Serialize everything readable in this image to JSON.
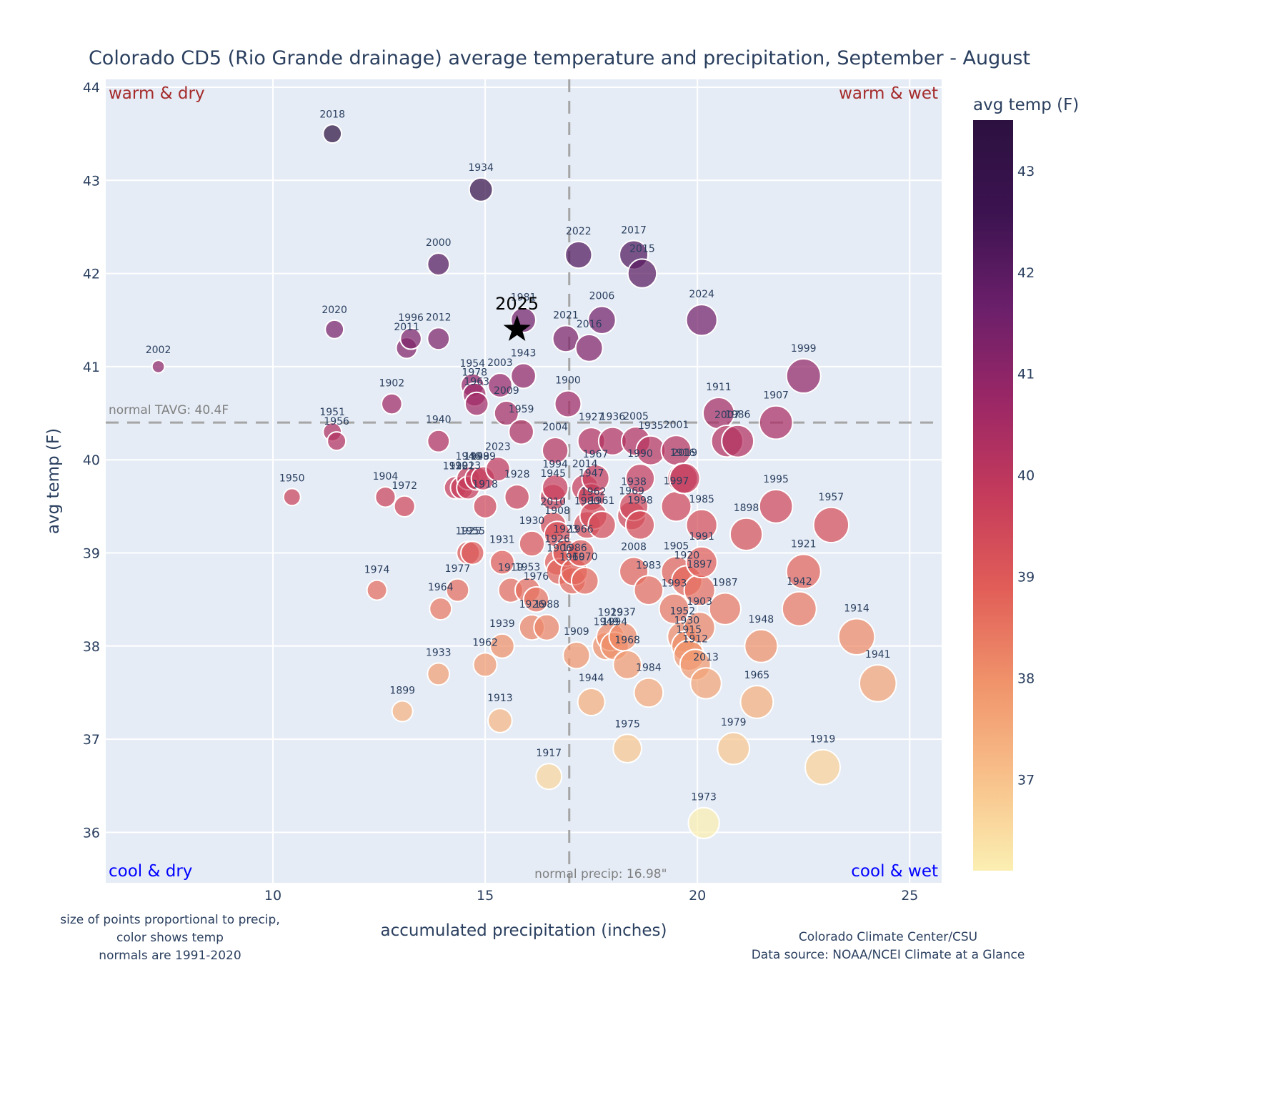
{
  "chart_data": {
    "type": "scatter",
    "title": "Colorado CD5 (Rio Grande drainage) average temperature and precipitation, September - August",
    "xlabel": "accumulated precipitation (inches)",
    "ylabel": "avg temp (F)",
    "xlim": [
      6,
      25.8
    ],
    "ylim": [
      35.5,
      44.1
    ],
    "xticks": [
      10,
      15,
      20,
      25
    ],
    "yticks": [
      36,
      37,
      38,
      39,
      40,
      41,
      42,
      43,
      44
    ],
    "grid": true,
    "colorbar": {
      "title": "avg temp (F)",
      "range": [
        36.1,
        43.5
      ],
      "ticks": [
        37,
        38,
        39,
        40,
        41,
        42,
        43
      ],
      "colorscale": "magma-reversed",
      "stops": [
        "#fbefb1",
        "#f8c08a",
        "#f0936b",
        "#e15e58",
        "#c53b5b",
        "#9b2766",
        "#6b1f6a",
        "#3c1350",
        "#2c1140"
      ]
    },
    "normals": {
      "temp": 40.4,
      "temp_label": "normal TAVG: 40.4F",
      "precip": 16.98,
      "precip_label": "normal precip: 16.98\""
    },
    "quadrant_labels": {
      "top_left": "warm & dry",
      "top_right": "warm & wet",
      "bottom_left": "cool & dry",
      "bottom_right": "cool & wet"
    },
    "highlight": {
      "label": "2025",
      "precip": 15.75,
      "temp": 41.4,
      "marker": "star"
    },
    "size_encoding": "precip",
    "color_encoding": "temp",
    "points": [
      {
        "year": "2018",
        "precip": 11.4,
        "temp": 43.5
      },
      {
        "year": "1934",
        "precip": 14.9,
        "temp": 42.9
      },
      {
        "year": "2000",
        "precip": 13.9,
        "temp": 42.1
      },
      {
        "year": "2022",
        "precip": 17.2,
        "temp": 42.2
      },
      {
        "year": "2017",
        "precip": 18.5,
        "temp": 42.2
      },
      {
        "year": "2015",
        "precip": 18.7,
        "temp": 42.0
      },
      {
        "year": "2006",
        "precip": 17.75,
        "temp": 41.5
      },
      {
        "year": "2024",
        "precip": 20.1,
        "temp": 41.5
      },
      {
        "year": "2021",
        "precip": 16.9,
        "temp": 41.3
      },
      {
        "year": "2016",
        "precip": 17.45,
        "temp": 41.2
      },
      {
        "year": "1981",
        "precip": 15.9,
        "temp": 41.5
      },
      {
        "year": "2020",
        "precip": 11.45,
        "temp": 41.4
      },
      {
        "year": "1996",
        "precip": 13.25,
        "temp": 41.3
      },
      {
        "year": "2011",
        "precip": 13.15,
        "temp": 41.2
      },
      {
        "year": "2012",
        "precip": 13.9,
        "temp": 41.3
      },
      {
        "year": "2002",
        "precip": 7.3,
        "temp": 41.0
      },
      {
        "year": "1999",
        "precip": 22.5,
        "temp": 40.9
      },
      {
        "year": "1943",
        "precip": 15.9,
        "temp": 40.9
      },
      {
        "year": "2003",
        "precip": 15.35,
        "temp": 40.8
      },
      {
        "year": "1954",
        "precip": 14.7,
        "temp": 40.8
      },
      {
        "year": "1978",
        "precip": 14.75,
        "temp": 40.7
      },
      {
        "year": "1963",
        "precip": 14.8,
        "temp": 40.6
      },
      {
        "year": "2009",
        "precip": 15.5,
        "temp": 40.5
      },
      {
        "year": "1902",
        "precip": 12.8,
        "temp": 40.6
      },
      {
        "year": "1900",
        "precip": 16.95,
        "temp": 40.6
      },
      {
        "year": "1959",
        "precip": 15.85,
        "temp": 40.3
      },
      {
        "year": "1911",
        "precip": 20.5,
        "temp": 40.5
      },
      {
        "year": "2007",
        "precip": 20.7,
        "temp": 40.2
      },
      {
        "year": "1986",
        "precip": 20.95,
        "temp": 40.2
      },
      {
        "year": "1907",
        "precip": 21.85,
        "temp": 40.4
      },
      {
        "year": "1951",
        "precip": 11.4,
        "temp": 40.3
      },
      {
        "year": "1956",
        "precip": 11.5,
        "temp": 40.2
      },
      {
        "year": "1940",
        "precip": 13.9,
        "temp": 40.2
      },
      {
        "year": "2004",
        "precip": 16.65,
        "temp": 40.1
      },
      {
        "year": "1927",
        "precip": 17.5,
        "temp": 40.2
      },
      {
        "year": "1936",
        "precip": 18.0,
        "temp": 40.2
      },
      {
        "year": "2005",
        "precip": 18.55,
        "temp": 40.2
      },
      {
        "year": "1935",
        "precip": 18.9,
        "temp": 40.1
      },
      {
        "year": "2001",
        "precip": 19.5,
        "temp": 40.1
      },
      {
        "year": "2019",
        "precip": 19.7,
        "temp": 39.8
      },
      {
        "year": "1990",
        "precip": 18.65,
        "temp": 39.8
      },
      {
        "year": "2023",
        "precip": 15.3,
        "temp": 39.9
      },
      {
        "year": "1946",
        "precip": 14.6,
        "temp": 39.8
      },
      {
        "year": "1949",
        "precip": 14.8,
        "temp": 39.8
      },
      {
        "year": "1989",
        "precip": 14.95,
        "temp": 39.8
      },
      {
        "year": "1920",
        "precip": 14.3,
        "temp": 39.7
      },
      {
        "year": "1922",
        "precip": 14.45,
        "temp": 39.7
      },
      {
        "year": "1913",
        "precip": 14.6,
        "temp": 39.7
      },
      {
        "year": "1918",
        "precip": 15.0,
        "temp": 39.5
      },
      {
        "year": "1928",
        "precip": 15.75,
        "temp": 39.6
      },
      {
        "year": "1967",
        "precip": 17.6,
        "temp": 39.8
      },
      {
        "year": "1994",
        "precip": 16.65,
        "temp": 39.7
      },
      {
        "year": "1945",
        "precip": 16.6,
        "temp": 39.6
      },
      {
        "year": "2014",
        "precip": 17.35,
        "temp": 39.7
      },
      {
        "year": "1947",
        "precip": 17.5,
        "temp": 39.6
      },
      {
        "year": "1938",
        "precip": 18.5,
        "temp": 39.5
      },
      {
        "year": "1916",
        "precip": 19.65,
        "temp": 39.8
      },
      {
        "year": "1950",
        "precip": 10.45,
        "temp": 39.6
      },
      {
        "year": "1904",
        "precip": 12.65,
        "temp": 39.6
      },
      {
        "year": "1972",
        "precip": 13.1,
        "temp": 39.5
      },
      {
        "year": "1962",
        "precip": 17.55,
        "temp": 39.4
      },
      {
        "year": "1961",
        "precip": 17.75,
        "temp": 39.3
      },
      {
        "year": "1969",
        "precip": 18.45,
        "temp": 39.4
      },
      {
        "year": "1997",
        "precip": 19.5,
        "temp": 39.5
      },
      {
        "year": "2010",
        "precip": 16.6,
        "temp": 39.3
      },
      {
        "year": "1980",
        "precip": 17.4,
        "temp": 39.3
      },
      {
        "year": "1898",
        "precip": 21.15,
        "temp": 39.2
      },
      {
        "year": "1995",
        "precip": 21.85,
        "temp": 39.5
      },
      {
        "year": "1957",
        "precip": 23.15,
        "temp": 39.3
      },
      {
        "year": "1930",
        "precip": 16.1,
        "temp": 39.1
      },
      {
        "year": "1908",
        "precip": 16.7,
        "temp": 39.2
      },
      {
        "year": "1985",
        "precip": 20.1,
        "temp": 39.3
      },
      {
        "year": "1998",
        "precip": 18.65,
        "temp": 39.3
      },
      {
        "year": "1925",
        "precip": 14.6,
        "temp": 39.0
      },
      {
        "year": "1955",
        "precip": 14.7,
        "temp": 39.0
      },
      {
        "year": "1931",
        "precip": 15.4,
        "temp": 38.9
      },
      {
        "year": "1926",
        "precip": 16.7,
        "temp": 38.9
      },
      {
        "year": "1923",
        "precip": 16.9,
        "temp": 39.0
      },
      {
        "year": "1966",
        "precip": 17.25,
        "temp": 39.0
      },
      {
        "year": "1906",
        "precip": 16.75,
        "temp": 38.8
      },
      {
        "year": "1986b",
        "precip": 17.1,
        "temp": 38.8
      },
      {
        "year": "1960",
        "precip": 17.05,
        "temp": 38.7
      },
      {
        "year": "1970",
        "precip": 17.35,
        "temp": 38.7
      },
      {
        "year": "2008",
        "precip": 18.5,
        "temp": 38.8
      },
      {
        "year": "1905",
        "precip": 19.5,
        "temp": 38.8
      },
      {
        "year": "1991",
        "precip": 20.1,
        "temp": 38.9
      },
      {
        "year": "1920b",
        "precip": 19.75,
        "temp": 38.7
      },
      {
        "year": "1983",
        "precip": 18.85,
        "temp": 38.6
      },
      {
        "year": "1897",
        "precip": 20.05,
        "temp": 38.6
      },
      {
        "year": "1921",
        "precip": 22.5,
        "temp": 38.8
      },
      {
        "year": "1974",
        "precip": 12.45,
        "temp": 38.6
      },
      {
        "year": "1977",
        "precip": 14.35,
        "temp": 38.6
      },
      {
        "year": "1919b",
        "precip": 15.6,
        "temp": 38.6
      },
      {
        "year": "1953",
        "precip": 16.0,
        "temp": 38.6
      },
      {
        "year": "1976",
        "precip": 16.2,
        "temp": 38.5
      },
      {
        "year": "1993",
        "precip": 19.45,
        "temp": 38.4
      },
      {
        "year": "1987",
        "precip": 20.65,
        "temp": 38.4
      },
      {
        "year": "1942",
        "precip": 22.4,
        "temp": 38.4
      },
      {
        "year": "1964",
        "precip": 13.95,
        "temp": 38.4
      },
      {
        "year": "1926b",
        "precip": 16.1,
        "temp": 38.2
      },
      {
        "year": "1988",
        "precip": 16.45,
        "temp": 38.2
      },
      {
        "year": "1937",
        "precip": 18.25,
        "temp": 38.1
      },
      {
        "year": "1929",
        "precip": 17.95,
        "temp": 38.1
      },
      {
        "year": "1949b",
        "precip": 17.85,
        "temp": 38.0
      },
      {
        "year": "1994b",
        "precip": 18.05,
        "temp": 38.0
      },
      {
        "year": "1952",
        "precip": 19.65,
        "temp": 38.1
      },
      {
        "year": "1930b",
        "precip": 19.75,
        "temp": 38.0
      },
      {
        "year": "1903",
        "precip": 20.05,
        "temp": 38.2
      },
      {
        "year": "1915",
        "precip": 19.8,
        "temp": 37.9
      },
      {
        "year": "1948",
        "precip": 21.5,
        "temp": 38.0
      },
      {
        "year": "1914",
        "precip": 23.75,
        "temp": 38.1
      },
      {
        "year": "1939",
        "precip": 15.4,
        "temp": 38.0
      },
      {
        "year": "1909",
        "precip": 17.15,
        "temp": 37.9
      },
      {
        "year": "1968",
        "precip": 18.35,
        "temp": 37.8
      },
      {
        "year": "1912",
        "precip": 19.95,
        "temp": 37.8
      },
      {
        "year": "1933",
        "precip": 13.9,
        "temp": 37.7
      },
      {
        "year": "1962b",
        "precip": 15.0,
        "temp": 37.8
      },
      {
        "year": "1941",
        "precip": 24.25,
        "temp": 37.6
      },
      {
        "year": "1944",
        "precip": 17.5,
        "temp": 37.4
      },
      {
        "year": "1984",
        "precip": 18.85,
        "temp": 37.5
      },
      {
        "year": "1965",
        "precip": 21.4,
        "temp": 37.4
      },
      {
        "year": "2013b",
        "precip": 20.2,
        "temp": 37.6
      },
      {
        "year": "1899",
        "precip": 13.05,
        "temp": 37.3
      },
      {
        "year": "1913b",
        "precip": 15.35,
        "temp": 37.2
      },
      {
        "year": "1975",
        "precip": 18.35,
        "temp": 36.9
      },
      {
        "year": "1979",
        "precip": 20.85,
        "temp": 36.9
      },
      {
        "year": "1919",
        "precip": 22.95,
        "temp": 36.7
      },
      {
        "year": "1917",
        "precip": 16.5,
        "temp": 36.6
      },
      {
        "year": "1973",
        "precip": 20.15,
        "temp": 36.1
      }
    ],
    "footnotes": {
      "left": [
        "size of points proportional to precip,",
        "color shows temp",
        "normals are 1991-2020"
      ],
      "right": [
        "Colorado Climate Center/CSU",
        "Data source: NOAA/NCEI Climate at a Glance"
      ]
    }
  }
}
